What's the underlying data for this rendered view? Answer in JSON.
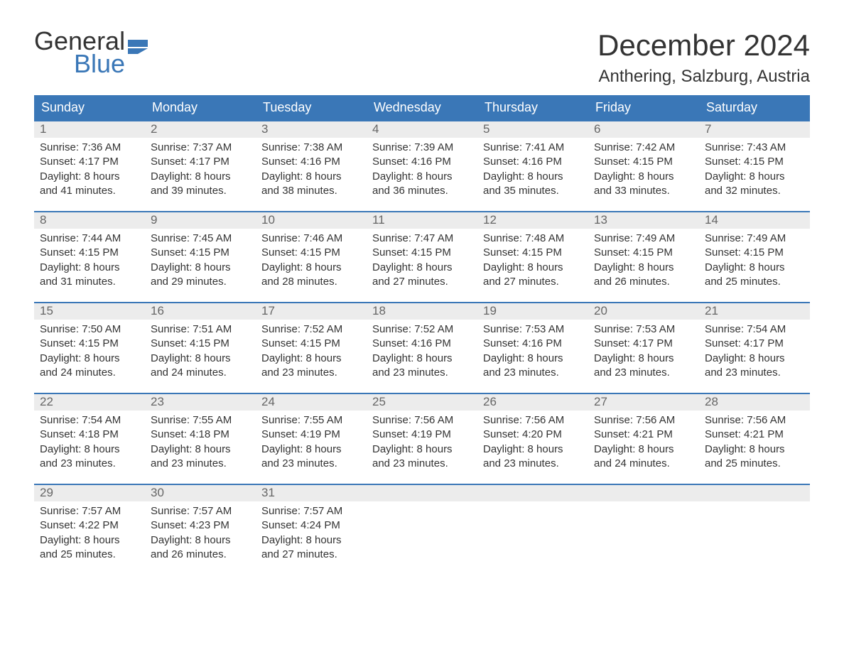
{
  "logo": {
    "text1": "General",
    "text2": "Blue",
    "flag_color": "#3a77b7"
  },
  "title": "December 2024",
  "location": "Anthering, Salzburg, Austria",
  "colors": {
    "header_bg": "#3a77b7",
    "header_text": "#ffffff",
    "daynum_bg": "#ececec",
    "daynum_text": "#666666",
    "body_text": "#333333",
    "week_border": "#3a77b7",
    "page_bg": "#ffffff"
  },
  "layout": {
    "columns": 7,
    "rows": 5,
    "first_day_column": 0,
    "days_in_month": 31
  },
  "dow": [
    "Sunday",
    "Monday",
    "Tuesday",
    "Wednesday",
    "Thursday",
    "Friday",
    "Saturday"
  ],
  "labels": {
    "sunrise": "Sunrise:",
    "sunset": "Sunset:",
    "daylight": "Daylight:"
  },
  "days": [
    {
      "n": 1,
      "sunrise": "7:36 AM",
      "sunset": "4:17 PM",
      "daylight": "8 hours and 41 minutes."
    },
    {
      "n": 2,
      "sunrise": "7:37 AM",
      "sunset": "4:17 PM",
      "daylight": "8 hours and 39 minutes."
    },
    {
      "n": 3,
      "sunrise": "7:38 AM",
      "sunset": "4:16 PM",
      "daylight": "8 hours and 38 minutes."
    },
    {
      "n": 4,
      "sunrise": "7:39 AM",
      "sunset": "4:16 PM",
      "daylight": "8 hours and 36 minutes."
    },
    {
      "n": 5,
      "sunrise": "7:41 AM",
      "sunset": "4:16 PM",
      "daylight": "8 hours and 35 minutes."
    },
    {
      "n": 6,
      "sunrise": "7:42 AM",
      "sunset": "4:15 PM",
      "daylight": "8 hours and 33 minutes."
    },
    {
      "n": 7,
      "sunrise": "7:43 AM",
      "sunset": "4:15 PM",
      "daylight": "8 hours and 32 minutes."
    },
    {
      "n": 8,
      "sunrise": "7:44 AM",
      "sunset": "4:15 PM",
      "daylight": "8 hours and 31 minutes."
    },
    {
      "n": 9,
      "sunrise": "7:45 AM",
      "sunset": "4:15 PM",
      "daylight": "8 hours and 29 minutes."
    },
    {
      "n": 10,
      "sunrise": "7:46 AM",
      "sunset": "4:15 PM",
      "daylight": "8 hours and 28 minutes."
    },
    {
      "n": 11,
      "sunrise": "7:47 AM",
      "sunset": "4:15 PM",
      "daylight": "8 hours and 27 minutes."
    },
    {
      "n": 12,
      "sunrise": "7:48 AM",
      "sunset": "4:15 PM",
      "daylight": "8 hours and 27 minutes."
    },
    {
      "n": 13,
      "sunrise": "7:49 AM",
      "sunset": "4:15 PM",
      "daylight": "8 hours and 26 minutes."
    },
    {
      "n": 14,
      "sunrise": "7:49 AM",
      "sunset": "4:15 PM",
      "daylight": "8 hours and 25 minutes."
    },
    {
      "n": 15,
      "sunrise": "7:50 AM",
      "sunset": "4:15 PM",
      "daylight": "8 hours and 24 minutes."
    },
    {
      "n": 16,
      "sunrise": "7:51 AM",
      "sunset": "4:15 PM",
      "daylight": "8 hours and 24 minutes."
    },
    {
      "n": 17,
      "sunrise": "7:52 AM",
      "sunset": "4:15 PM",
      "daylight": "8 hours and 23 minutes."
    },
    {
      "n": 18,
      "sunrise": "7:52 AM",
      "sunset": "4:16 PM",
      "daylight": "8 hours and 23 minutes."
    },
    {
      "n": 19,
      "sunrise": "7:53 AM",
      "sunset": "4:16 PM",
      "daylight": "8 hours and 23 minutes."
    },
    {
      "n": 20,
      "sunrise": "7:53 AM",
      "sunset": "4:17 PM",
      "daylight": "8 hours and 23 minutes."
    },
    {
      "n": 21,
      "sunrise": "7:54 AM",
      "sunset": "4:17 PM",
      "daylight": "8 hours and 23 minutes."
    },
    {
      "n": 22,
      "sunrise": "7:54 AM",
      "sunset": "4:18 PM",
      "daylight": "8 hours and 23 minutes."
    },
    {
      "n": 23,
      "sunrise": "7:55 AM",
      "sunset": "4:18 PM",
      "daylight": "8 hours and 23 minutes."
    },
    {
      "n": 24,
      "sunrise": "7:55 AM",
      "sunset": "4:19 PM",
      "daylight": "8 hours and 23 minutes."
    },
    {
      "n": 25,
      "sunrise": "7:56 AM",
      "sunset": "4:19 PM",
      "daylight": "8 hours and 23 minutes."
    },
    {
      "n": 26,
      "sunrise": "7:56 AM",
      "sunset": "4:20 PM",
      "daylight": "8 hours and 23 minutes."
    },
    {
      "n": 27,
      "sunrise": "7:56 AM",
      "sunset": "4:21 PM",
      "daylight": "8 hours and 24 minutes."
    },
    {
      "n": 28,
      "sunrise": "7:56 AM",
      "sunset": "4:21 PM",
      "daylight": "8 hours and 25 minutes."
    },
    {
      "n": 29,
      "sunrise": "7:57 AM",
      "sunset": "4:22 PM",
      "daylight": "8 hours and 25 minutes."
    },
    {
      "n": 30,
      "sunrise": "7:57 AM",
      "sunset": "4:23 PM",
      "daylight": "8 hours and 26 minutes."
    },
    {
      "n": 31,
      "sunrise": "7:57 AM",
      "sunset": "4:24 PM",
      "daylight": "8 hours and 27 minutes."
    }
  ]
}
